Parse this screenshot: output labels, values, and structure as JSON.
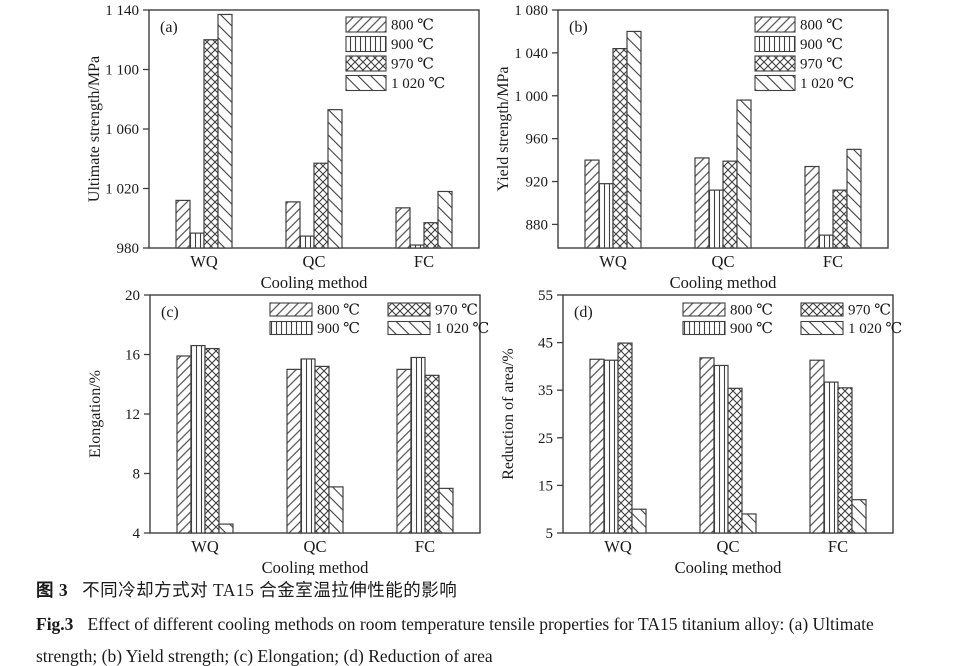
{
  "colors": {
    "background": "#ffffff",
    "axis": "#3f3f3f",
    "bar_stroke": "#3f3f3f",
    "hatch": "#3f3f3f",
    "text": "#1a1a1a"
  },
  "caption": {
    "zh_label": "图 3",
    "zh_text": "不同冷却方式对 TA15 合金室温拉伸性能的影响",
    "en_label": "Fig.3",
    "en_text": "Effect of different cooling methods on room temperature tensile properties for TA15 titanium alloy: (a) Ultimate strength; (b) Yield strength; (c) Elongation; (d) Reduction of area"
  },
  "chart_data": [
    {
      "id": "a",
      "type": "bar",
      "panel_label": "(a)",
      "xlabel": "Cooling method",
      "ylabel": "Ultimate strength/MPa",
      "categories": [
        "WQ",
        "QC",
        "FC"
      ],
      "series": [
        {
          "name": "800 ℃",
          "pattern": "diag-up",
          "values": [
            1012,
            1011,
            1007
          ]
        },
        {
          "name": "900 ℃",
          "pattern": "vertical",
          "values": [
            990,
            988,
            982
          ]
        },
        {
          "name": "970 ℃",
          "pattern": "crosshatch",
          "values": [
            1120,
            1037,
            997
          ]
        },
        {
          "name": "1 020 ℃",
          "pattern": "diag-down",
          "values": [
            1137,
            1073,
            1018
          ]
        }
      ],
      "ylim": [
        980,
        1140
      ],
      "yticks": [
        980,
        1020,
        1060,
        1100,
        1140
      ],
      "ytick_labels": [
        "980",
        "1 020",
        "1 060",
        "1 100",
        "1 140"
      ],
      "grid": false,
      "legend": {
        "position": "top-right",
        "columns": 1
      }
    },
    {
      "id": "b",
      "type": "bar",
      "panel_label": "(b)",
      "xlabel": "Cooling method",
      "ylabel": "Yield strength/MPa",
      "categories": [
        "WQ",
        "QC",
        "FC"
      ],
      "series": [
        {
          "name": "800 ℃",
          "pattern": "diag-up",
          "values": [
            940,
            942,
            934
          ]
        },
        {
          "name": "900 ℃",
          "pattern": "vertical",
          "values": [
            918,
            912,
            870
          ]
        },
        {
          "name": "970 ℃",
          "pattern": "crosshatch",
          "values": [
            1044,
            939,
            912
          ]
        },
        {
          "name": "1 020 ℃",
          "pattern": "diag-down",
          "values": [
            1060,
            996,
            950
          ]
        }
      ],
      "ylim": [
        858,
        1080
      ],
      "yticks": [
        880,
        920,
        960,
        1000,
        1040,
        1080
      ],
      "ytick_labels": [
        "880",
        "920",
        "960",
        "1 000",
        "1 040",
        "1 080"
      ],
      "grid": false,
      "legend": {
        "position": "top-right",
        "columns": 1
      }
    },
    {
      "id": "c",
      "type": "bar",
      "panel_label": "(c)",
      "xlabel": "Cooling method",
      "ylabel": "Elongation/%",
      "categories": [
        "WQ",
        "QC",
        "FC"
      ],
      "series": [
        {
          "name": "800 ℃",
          "pattern": "diag-up",
          "values": [
            15.9,
            15.0,
            15.0
          ]
        },
        {
          "name": "900 ℃",
          "pattern": "vertical",
          "values": [
            16.6,
            15.7,
            15.8
          ]
        },
        {
          "name": "970 ℃",
          "pattern": "crosshatch",
          "values": [
            16.4,
            15.2,
            14.6
          ]
        },
        {
          "name": "1 020 ℃",
          "pattern": "diag-down",
          "values": [
            4.6,
            7.1,
            7.0
          ]
        }
      ],
      "ylim": [
        4,
        20
      ],
      "yticks": [
        4,
        8,
        12,
        16,
        20
      ],
      "ytick_labels": [
        "4",
        "8",
        "12",
        "16",
        "20"
      ],
      "grid": false,
      "legend": {
        "position": "top-center",
        "columns": 2
      }
    },
    {
      "id": "d",
      "type": "bar",
      "panel_label": "(d)",
      "xlabel": "Cooling method",
      "ylabel": "Reduction of area/%",
      "categories": [
        "WQ",
        "QC",
        "FC"
      ],
      "series": [
        {
          "name": "800 ℃",
          "pattern": "diag-up",
          "values": [
            41.5,
            41.8,
            41.3
          ]
        },
        {
          "name": "900 ℃",
          "pattern": "vertical",
          "values": [
            41.3,
            40.2,
            36.7
          ]
        },
        {
          "name": "970 ℃",
          "pattern": "crosshatch",
          "values": [
            44.9,
            35.4,
            35.5
          ]
        },
        {
          "name": "1 020 ℃",
          "pattern": "diag-down",
          "values": [
            10.0,
            9.0,
            12.0
          ]
        }
      ],
      "ylim": [
        5,
        55
      ],
      "yticks": [
        5,
        15,
        25,
        35,
        45,
        55
      ],
      "ytick_labels": [
        "5",
        "15",
        "25",
        "35",
        "45",
        "55"
      ],
      "grid": false,
      "legend": {
        "position": "top-center",
        "columns": 2
      }
    }
  ]
}
